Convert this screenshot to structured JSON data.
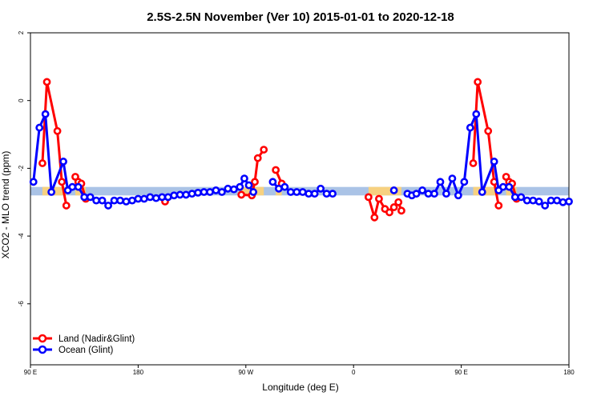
{
  "chart_data": {
    "type": "line",
    "title": "2.5S-2.5N November (Ver 10)   2015-01-01 to 2020-12-18",
    "xlabel": "Longitude (deg E)",
    "ylabel": "XCO2 - MLO trend (ppm)",
    "xlim": [
      90,
      450
    ],
    "ylim": [
      -7.8,
      2.0
    ],
    "x_ticks": [
      {
        "value": 90,
        "label": "90 E"
      },
      {
        "value": 162,
        "label": "180"
      },
      {
        "value": 234,
        "label": "90 W"
      },
      {
        "value": 306,
        "label": "0"
      },
      {
        "value": 378,
        "label": "90 E"
      },
      {
        "value": 450,
        "label": "180"
      }
    ],
    "y_ticks": [
      {
        "value": 2,
        "label": "2"
      },
      {
        "value": 0,
        "label": "0"
      },
      {
        "value": -2,
        "label": "-2"
      },
      {
        "value": -4,
        "label": "-4"
      },
      {
        "value": -6,
        "label": "-6"
      }
    ],
    "mlo_band": {
      "lower": -2.8,
      "upper": -2.55,
      "land_fill": "#ffd374",
      "ocean_fill": "#aac3e6"
    },
    "series": [
      {
        "name": "Land (Nadir&Glint)",
        "color": "#ff0000",
        "segments": [
          [
            [
              98,
              -1.85
            ],
            [
              101,
              0.55
            ],
            [
              108,
              -0.9
            ],
            [
              111,
              -2.4
            ],
            [
              114,
              -3.1
            ]
          ],
          [
            [
              120,
              -2.25
            ],
            [
              122,
              -2.4
            ],
            [
              124,
              -2.45
            ],
            [
              127,
              -2.9
            ]
          ],
          [
            [
              180,
              -2.98
            ]
          ],
          [
            [
              231,
              -2.78
            ],
            [
              238,
              -2.8
            ],
            [
              240,
              -2.4
            ],
            [
              242,
              -1.7
            ],
            [
              246,
              -1.45
            ]
          ],
          [
            [
              254,
              -2.05
            ],
            [
              258,
              -2.45
            ]
          ],
          [
            [
              316,
              -2.85
            ],
            [
              320,
              -3.45
            ],
            [
              323,
              -2.9
            ],
            [
              327,
              -3.2
            ],
            [
              330,
              -3.3
            ],
            [
              333,
              -3.15
            ],
            [
              336,
              -3.0
            ],
            [
              338,
              -3.25
            ]
          ],
          [
            [
              386,
              -1.85
            ],
            [
              389,
              0.55
            ],
            [
              396,
              -0.9
            ],
            [
              400,
              -2.4
            ],
            [
              403,
              -3.1
            ]
          ],
          [
            [
              408,
              -2.25
            ],
            [
              410,
              -2.4
            ],
            [
              412,
              -2.45
            ],
            [
              415,
              -2.9
            ]
          ]
        ]
      },
      {
        "name": "Ocean (Glint)",
        "color": "#0000ff",
        "segments": [
          [
            [
              92,
              -2.4
            ],
            [
              96,
              -0.8
            ],
            [
              100,
              -0.4
            ],
            [
              104,
              -2.7
            ],
            [
              112,
              -1.8
            ],
            [
              115,
              -2.65
            ],
            [
              118,
              -2.55
            ],
            [
              122,
              -2.55
            ],
            [
              126,
              -2.85
            ],
            [
              130,
              -2.85
            ],
            [
              134,
              -2.95
            ],
            [
              138,
              -2.95
            ],
            [
              142,
              -3.1
            ],
            [
              146,
              -2.95
            ],
            [
              150,
              -2.95
            ],
            [
              154,
              -2.98
            ],
            [
              158,
              -2.95
            ],
            [
              162,
              -2.9
            ],
            [
              166,
              -2.9
            ],
            [
              170,
              -2.85
            ],
            [
              174,
              -2.88
            ],
            [
              178,
              -2.85
            ],
            [
              182,
              -2.85
            ],
            [
              186,
              -2.8
            ],
            [
              190,
              -2.78
            ],
            [
              194,
              -2.78
            ],
            [
              198,
              -2.75
            ],
            [
              202,
              -2.72
            ],
            [
              206,
              -2.7
            ],
            [
              210,
              -2.7
            ],
            [
              214,
              -2.65
            ],
            [
              218,
              -2.7
            ],
            [
              222,
              -2.6
            ],
            [
              226,
              -2.62
            ],
            [
              230,
              -2.55
            ],
            [
              233,
              -2.3
            ],
            [
              236,
              -2.5
            ],
            [
              239,
              -2.7
            ]
          ],
          [
            [
              252,
              -2.4
            ],
            [
              256,
              -2.6
            ],
            [
              260,
              -2.55
            ],
            [
              264,
              -2.7
            ],
            [
              268,
              -2.7
            ],
            [
              272,
              -2.7
            ],
            [
              276,
              -2.75
            ],
            [
              280,
              -2.75
            ],
            [
              284,
              -2.6
            ],
            [
              288,
              -2.75
            ],
            [
              292,
              -2.75
            ]
          ],
          [
            [
              333,
              -2.65
            ]
          ],
          [
            [
              342,
              -2.75
            ],
            [
              345,
              -2.8
            ],
            [
              348,
              -2.75
            ],
            [
              352,
              -2.65
            ],
            [
              356,
              -2.75
            ],
            [
              360,
              -2.75
            ],
            [
              364,
              -2.4
            ],
            [
              368,
              -2.75
            ],
            [
              372,
              -2.3
            ],
            [
              376,
              -2.8
            ],
            [
              380,
              -2.4
            ],
            [
              384,
              -0.8
            ],
            [
              388,
              -0.4
            ],
            [
              392,
              -2.7
            ],
            [
              400,
              -1.8
            ],
            [
              403,
              -2.65
            ],
            [
              406,
              -2.55
            ],
            [
              410,
              -2.55
            ],
            [
              414,
              -2.85
            ],
            [
              418,
              -2.85
            ],
            [
              422,
              -2.95
            ],
            [
              426,
              -2.95
            ],
            [
              430,
              -2.98
            ],
            [
              434,
              -3.1
            ],
            [
              438,
              -2.95
            ],
            [
              442,
              -2.95
            ],
            [
              446,
              -3.0
            ],
            [
              450,
              -2.98
            ]
          ]
        ]
      }
    ],
    "legend": {
      "position": "bottom-left",
      "entries": [
        "Land (Nadir&Glint)",
        "Ocean (Glint)"
      ]
    }
  }
}
